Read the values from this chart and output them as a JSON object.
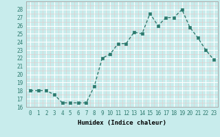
{
  "x": [
    0,
    1,
    2,
    3,
    4,
    5,
    6,
    7,
    8,
    9,
    10,
    11,
    12,
    13,
    14,
    15,
    16,
    17,
    18,
    19,
    20,
    21,
    22,
    23
  ],
  "y": [
    18,
    18,
    18,
    17.5,
    16.5,
    16.5,
    16.5,
    16.5,
    18.5,
    22,
    22.5,
    23.8,
    23.8,
    25.2,
    25.0,
    27.5,
    26.0,
    27.0,
    27.0,
    28.0,
    25.8,
    24.5,
    23.0,
    21.8
  ],
  "line_color": "#2d7a6e",
  "marker_color": "#2d7a6e",
  "bg_color": "#c8ecec",
  "grid_major_color": "#ffffff",
  "grid_minor_color": "#dff0f0",
  "xlabel": "Humidex (Indice chaleur)",
  "xlim": [
    -0.5,
    23.5
  ],
  "ylim": [
    16,
    29
  ],
  "yticks": [
    16,
    17,
    18,
    19,
    20,
    21,
    22,
    23,
    24,
    25,
    26,
    27,
    28
  ],
  "xticks": [
    0,
    1,
    2,
    3,
    4,
    5,
    6,
    7,
    8,
    9,
    10,
    11,
    12,
    13,
    14,
    15,
    16,
    17,
    18,
    19,
    20,
    21,
    22,
    23
  ],
  "xtick_labels": [
    "0",
    "1",
    "2",
    "3",
    "4",
    "5",
    "6",
    "7",
    "8",
    "9",
    "10",
    "11",
    "12",
    "13",
    "14",
    "15",
    "16",
    "17",
    "18",
    "19",
    "20",
    "21",
    "22",
    "23"
  ],
  "tick_fontsize": 5.5,
  "xlabel_fontsize": 6.5,
  "linewidth": 1.0,
  "markersize": 2.5
}
